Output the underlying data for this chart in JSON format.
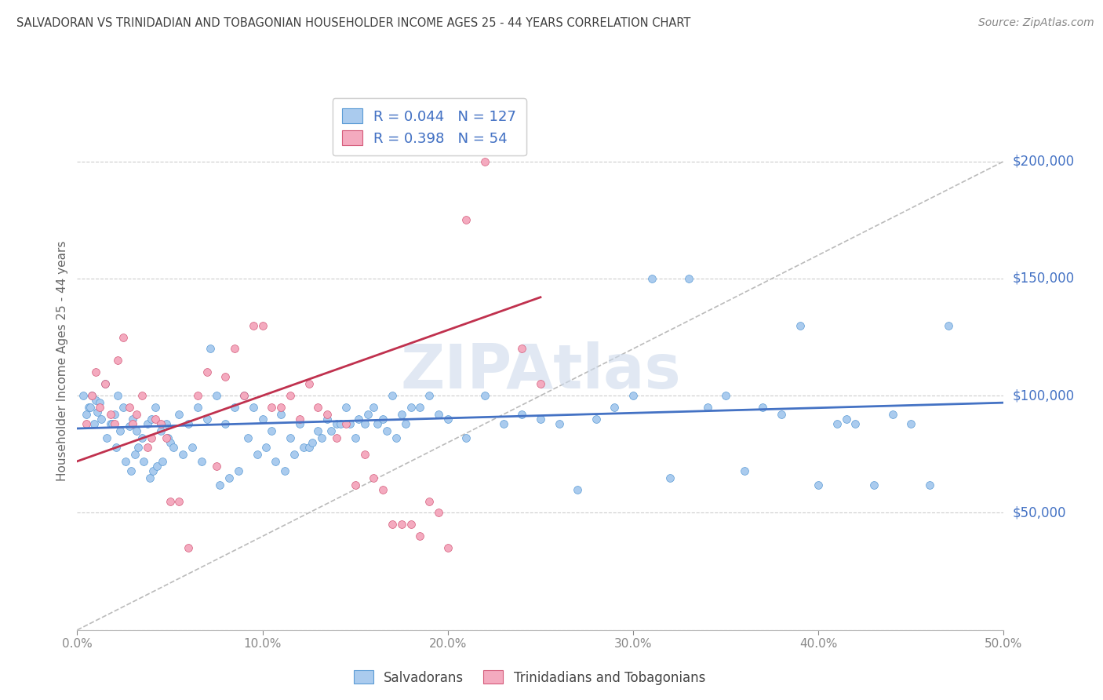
{
  "title": "SALVADORAN VS TRINIDADIAN AND TOBAGONIAN HOUSEHOLDER INCOME AGES 25 - 44 YEARS CORRELATION CHART",
  "source_text": "Source: ZipAtlas.com",
  "ylabel": "Householder Income Ages 25 - 44 years",
  "xlim": [
    0.0,
    0.5
  ],
  "ylim": [
    0,
    230000
  ],
  "R_blue": 0.044,
  "N_blue": 127,
  "R_pink": 0.398,
  "N_pink": 54,
  "blue_scatter_color": "#aacbee",
  "blue_edge_color": "#5b9bd5",
  "pink_scatter_color": "#f4aabf",
  "pink_edge_color": "#d45b7a",
  "blue_line_color": "#4472c4",
  "pink_line_color": "#c0314e",
  "diag_line_color": "#bbbbbb",
  "grid_color": "#cccccc",
  "axis_tick_color": "#4472c4",
  "title_color": "#404040",
  "watermark_color": "#cddaeb",
  "legend_text_color": "#4472c4",
  "salvadorans_x": [
    0.003,
    0.005,
    0.006,
    0.007,
    0.008,
    0.009,
    0.01,
    0.011,
    0.012,
    0.013,
    0.015,
    0.016,
    0.018,
    0.019,
    0.02,
    0.021,
    0.022,
    0.023,
    0.025,
    0.026,
    0.028,
    0.029,
    0.03,
    0.031,
    0.032,
    0.033,
    0.035,
    0.036,
    0.038,
    0.039,
    0.04,
    0.041,
    0.042,
    0.043,
    0.045,
    0.046,
    0.048,
    0.049,
    0.05,
    0.052,
    0.055,
    0.057,
    0.06,
    0.062,
    0.065,
    0.067,
    0.07,
    0.072,
    0.075,
    0.077,
    0.08,
    0.082,
    0.085,
    0.087,
    0.09,
    0.092,
    0.095,
    0.097,
    0.1,
    0.102,
    0.105,
    0.107,
    0.11,
    0.112,
    0.115,
    0.117,
    0.12,
    0.122,
    0.125,
    0.127,
    0.13,
    0.132,
    0.135,
    0.137,
    0.14,
    0.142,
    0.145,
    0.147,
    0.15,
    0.152,
    0.155,
    0.157,
    0.16,
    0.162,
    0.165,
    0.167,
    0.17,
    0.172,
    0.175,
    0.177,
    0.18,
    0.185,
    0.19,
    0.195,
    0.2,
    0.21,
    0.22,
    0.23,
    0.24,
    0.25,
    0.26,
    0.27,
    0.28,
    0.29,
    0.3,
    0.32,
    0.34,
    0.36,
    0.38,
    0.4,
    0.42,
    0.43,
    0.44,
    0.45,
    0.46,
    0.47,
    0.31,
    0.33,
    0.35,
    0.37,
    0.39,
    0.41,
    0.415
  ],
  "salvadorans_y": [
    100000,
    92000,
    95000,
    95000,
    100000,
    88000,
    98000,
    93000,
    97000,
    90000,
    105000,
    82000,
    88000,
    88000,
    92000,
    78000,
    100000,
    85000,
    95000,
    72000,
    87000,
    68000,
    90000,
    75000,
    85000,
    78000,
    82000,
    72000,
    88000,
    65000,
    90000,
    68000,
    95000,
    70000,
    85000,
    72000,
    88000,
    82000,
    80000,
    78000,
    92000,
    75000,
    88000,
    78000,
    95000,
    72000,
    90000,
    120000,
    100000,
    62000,
    88000,
    65000,
    95000,
    68000,
    100000,
    82000,
    95000,
    75000,
    90000,
    78000,
    85000,
    72000,
    92000,
    68000,
    82000,
    75000,
    88000,
    78000,
    78000,
    80000,
    85000,
    82000,
    90000,
    85000,
    88000,
    88000,
    95000,
    88000,
    82000,
    90000,
    88000,
    92000,
    95000,
    88000,
    90000,
    85000,
    100000,
    82000,
    92000,
    88000,
    95000,
    95000,
    100000,
    92000,
    90000,
    82000,
    100000,
    88000,
    92000,
    90000,
    88000,
    60000,
    90000,
    95000,
    100000,
    65000,
    95000,
    68000,
    92000,
    62000,
    88000,
    62000,
    92000,
    88000,
    62000,
    130000,
    150000,
    150000,
    100000,
    95000,
    130000,
    88000,
    90000
  ],
  "trinidadian_x": [
    0.005,
    0.008,
    0.01,
    0.012,
    0.015,
    0.018,
    0.02,
    0.022,
    0.025,
    0.028,
    0.03,
    0.032,
    0.035,
    0.038,
    0.04,
    0.042,
    0.045,
    0.048,
    0.05,
    0.055,
    0.06,
    0.065,
    0.07,
    0.075,
    0.08,
    0.085,
    0.09,
    0.095,
    0.1,
    0.105,
    0.11,
    0.115,
    0.12,
    0.125,
    0.13,
    0.135,
    0.14,
    0.145,
    0.15,
    0.155,
    0.16,
    0.165,
    0.17,
    0.175,
    0.18,
    0.185,
    0.19,
    0.195,
    0.2,
    0.21,
    0.22,
    0.23,
    0.24,
    0.25
  ],
  "trinidadian_y": [
    88000,
    100000,
    110000,
    95000,
    105000,
    92000,
    88000,
    115000,
    125000,
    95000,
    88000,
    92000,
    100000,
    78000,
    82000,
    90000,
    88000,
    82000,
    55000,
    55000,
    35000,
    100000,
    110000,
    70000,
    108000,
    120000,
    100000,
    130000,
    130000,
    95000,
    95000,
    100000,
    90000,
    105000,
    95000,
    92000,
    82000,
    88000,
    62000,
    75000,
    65000,
    60000,
    45000,
    45000,
    45000,
    40000,
    55000,
    50000,
    35000,
    175000,
    200000,
    220000,
    120000,
    105000
  ],
  "blue_trend_x": [
    0.0,
    0.5
  ],
  "blue_trend_y": [
    86000,
    97000
  ],
  "pink_trend_x": [
    0.0,
    0.25
  ],
  "pink_trend_y": [
    72000,
    142000
  ]
}
